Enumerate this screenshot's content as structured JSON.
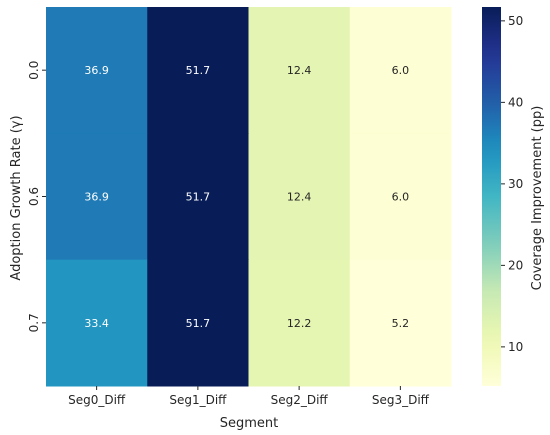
{
  "chart_data": {
    "type": "heatmap",
    "title": "",
    "xlabel": "Segment",
    "ylabel": "Adoption Growth Rate (γ)",
    "x_categories": [
      "Seg0_Diff",
      "Seg1_Diff",
      "Seg2_Diff",
      "Seg3_Diff"
    ],
    "y_categories": [
      "0.0",
      "0.6",
      "0.7"
    ],
    "values": [
      [
        36.9,
        51.7,
        12.4,
        6.0
      ],
      [
        36.9,
        51.7,
        12.4,
        6.0
      ],
      [
        33.4,
        51.7,
        12.2,
        5.2
      ]
    ],
    "value_labels": [
      [
        "36.9",
        "51.7",
        "12.4",
        "6.0"
      ],
      [
        "36.9",
        "51.7",
        "12.4",
        "6.0"
      ],
      [
        "33.4",
        "51.7",
        "12.2",
        "5.2"
      ]
    ],
    "colorbar": {
      "label": "Coverage Improvement (pp)",
      "range": [
        5.2,
        51.7
      ],
      "ticks": [
        10,
        20,
        30,
        40,
        50
      ],
      "tick_labels": [
        "10",
        "20",
        "30",
        "40",
        "50"
      ],
      "colormap": "YlGnBu"
    },
    "grid": false
  }
}
